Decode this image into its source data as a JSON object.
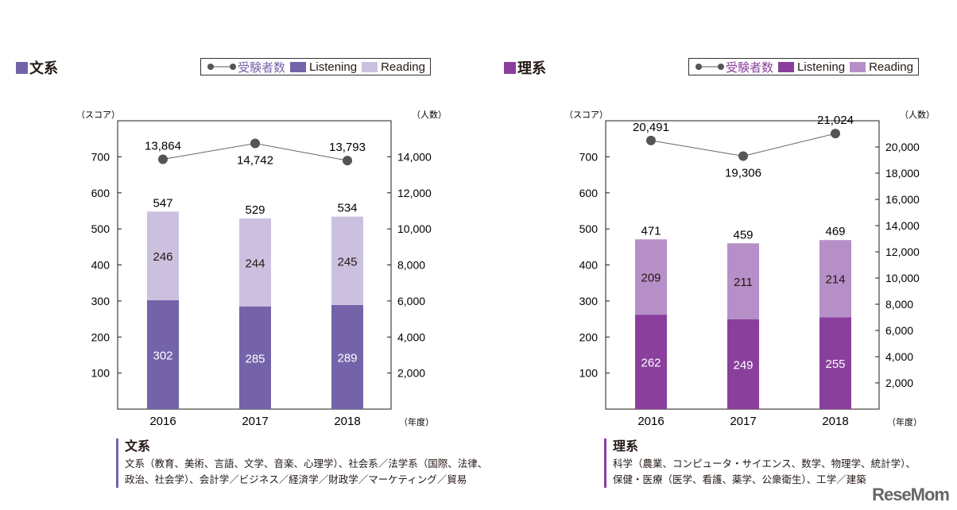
{
  "chart_data": [
    {
      "type": "bar",
      "stacked": true,
      "title": "文系",
      "categories": [
        "2016",
        "2017",
        "2018"
      ],
      "series": [
        {
          "name": "Listening",
          "values": [
            302,
            285,
            289
          ],
          "color": "#7563aa"
        },
        {
          "name": "Reading",
          "values": [
            246,
            244,
            245
          ],
          "color": "#ccc0df"
        },
        {
          "name": "受験者数",
          "type": "line",
          "axis": "right",
          "values": [
            13864,
            14742,
            13793
          ],
          "labels": [
            "13,864",
            "14,742",
            "13,793"
          ],
          "color": "#555555"
        }
      ],
      "totals": [
        547,
        529,
        534
      ],
      "ylabel": "（スコア）",
      "y2label": "（人数）",
      "xlabel": "（年度）",
      "ylim": [
        0,
        800
      ],
      "yticks": [
        100,
        200,
        300,
        400,
        500,
        600,
        700
      ],
      "y2lim": [
        0,
        16000
      ],
      "y2ticks": [
        2000,
        4000,
        6000,
        8000,
        10000,
        12000,
        14000
      ],
      "y2ticklabels": [
        "2,000",
        "4,000",
        "6,000",
        "8,000",
        "10,000",
        "12,000",
        "14,000"
      ],
      "legend": "top-right",
      "note_title": "文系",
      "note_lines": [
        "文系（教育、美術、言語、文学、音楽、心理学）、社会系／法学系（国際、法律、",
        "政治、社会学）、会計学／ビジネス／経済学／財政学／マーケティング／貿易"
      ],
      "accent": "#7563aa"
    },
    {
      "type": "bar",
      "stacked": true,
      "title": "理系",
      "categories": [
        "2016",
        "2017",
        "2018"
      ],
      "series": [
        {
          "name": "Listening",
          "values": [
            262,
            249,
            255
          ],
          "color": "#8a3f9d"
        },
        {
          "name": "Reading",
          "values": [
            209,
            211,
            214
          ],
          "color": "#b78fc8"
        },
        {
          "name": "受験者数",
          "type": "line",
          "axis": "right",
          "values": [
            20491,
            19306,
            21024
          ],
          "labels": [
            "20,491",
            "19,306",
            "21,024"
          ],
          "color": "#555555"
        }
      ],
      "totals": [
        471,
        459,
        469
      ],
      "ylabel": "（スコア）",
      "y2label": "（人数）",
      "xlabel": "（年度）",
      "ylim": [
        0,
        800
      ],
      "yticks": [
        100,
        200,
        300,
        400,
        500,
        600,
        700
      ],
      "y2lim": [
        0,
        22000
      ],
      "y2ticks": [
        2000,
        4000,
        6000,
        8000,
        10000,
        12000,
        14000,
        16000,
        18000,
        20000
      ],
      "y2ticklabels": [
        "2,000",
        "4,000",
        "6,000",
        "8,000",
        "10,000",
        "12,000",
        "14,000",
        "16,000",
        "18,000",
        "20,000"
      ],
      "legend": "top-right",
      "note_title": "理系",
      "note_lines": [
        "科学（農業、コンピュータ・サイエンス、数学、物理学、統計学）、",
        "保健・医療（医学、看護、薬学、公衆衛生）、工学／建築"
      ],
      "accent": "#8a3f9d"
    }
  ],
  "watermark": "ReseMom"
}
